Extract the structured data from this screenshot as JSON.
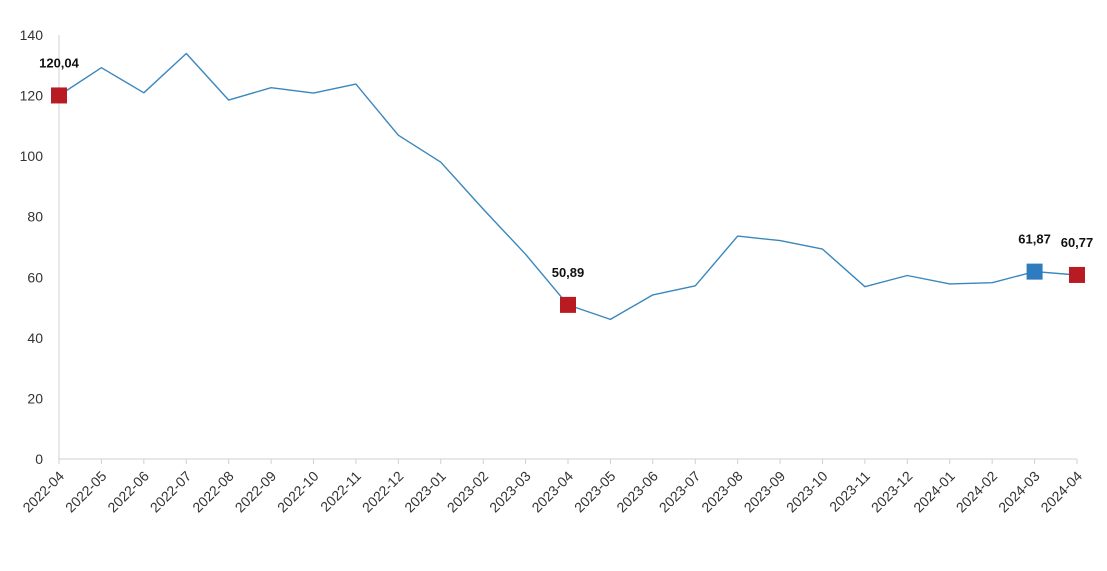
{
  "chart_data": {
    "type": "line",
    "title": "",
    "xlabel": "",
    "ylabel": "",
    "ylim": [
      0,
      140
    ],
    "yticks": [
      0,
      20,
      40,
      60,
      80,
      100,
      120,
      140
    ],
    "grid": false,
    "legend": "none",
    "line_color": "#3a87bd",
    "highlight_color": "#b81c22",
    "accent_color": "#2e7bbf",
    "categories": [
      "2022-04",
      "2022-05",
      "2022-06",
      "2022-07",
      "2022-08",
      "2022-09",
      "2022-10",
      "2022-11",
      "2022-12",
      "2023-01",
      "2023-02",
      "2023-03",
      "2023-04",
      "2023-05",
      "2023-06",
      "2023-07",
      "2023-08",
      "2023-09",
      "2023-10",
      "2023-11",
      "2023-12",
      "2024-01",
      "2024-02",
      "2024-03",
      "2024-04"
    ],
    "series": [
      {
        "values": [
          120.04,
          129.2,
          120.9,
          133.9,
          118.5,
          122.6,
          120.8,
          123.8,
          106.9,
          98.0,
          82.5,
          67.6,
          50.89,
          46.1,
          54.2,
          57.2,
          73.6,
          72.1,
          69.3,
          56.9,
          60.6,
          57.8,
          58.2,
          61.87,
          60.77
        ]
      }
    ],
    "annotations": [
      {
        "category": "2022-04",
        "value": 120.04,
        "label": "120,04",
        "color": "#b81c22"
      },
      {
        "category": "2023-04",
        "value": 50.89,
        "label": "50,89",
        "color": "#b81c22"
      },
      {
        "category": "2024-03",
        "value": 61.87,
        "label": "61,87",
        "color": "#2e7bbf"
      },
      {
        "category": "2024-04",
        "value": 60.77,
        "label": "60,77",
        "color": "#b81c22"
      }
    ]
  }
}
